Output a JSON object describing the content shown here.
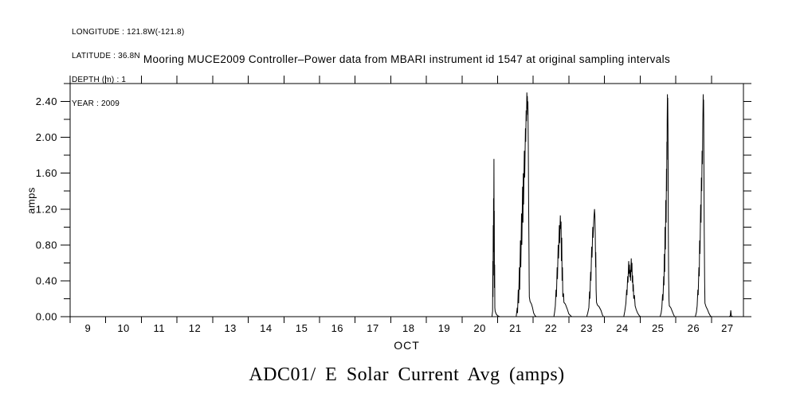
{
  "header": {
    "metadata_lines": [
      "LONGITUDE : 121.8W(-121.8)",
      "LATITUDE : 36.8N",
      "DEPTH (m) : 1",
      "YEAR : 2009"
    ],
    "title": "Mooring MUCE2009 Controller–Power data from MBARI instrument id 1547 at original sampling intervals"
  },
  "footer": {
    "title": "ADC01/ E Solar Current Avg (amps)"
  },
  "colors": {
    "background": "#ffffff",
    "foreground": "#000000"
  },
  "chart_data": {
    "type": "line",
    "title": "Mooring MUCE2009 Controller–Power data from MBARI instrument id 1547 at original sampling intervals",
    "subtitle": "ADC01/ E Solar Current Avg (amps)",
    "xlabel": "OCT",
    "ylabel": "amps",
    "xlim": [
      9,
      27.9
    ],
    "ylim": [
      0,
      2.6
    ],
    "grid": false,
    "legend": "none",
    "x_ticks": [
      9,
      10,
      11,
      12,
      13,
      14,
      15,
      16,
      17,
      18,
      19,
      20,
      21,
      22,
      23,
      24,
      25,
      26,
      27
    ],
    "x_tick_labels": [
      "9",
      "10",
      "11",
      "12",
      "13",
      "14",
      "15",
      "16",
      "17",
      "18",
      "19",
      "20",
      "21",
      "22",
      "23",
      "24",
      "25",
      "26",
      "27"
    ],
    "y_ticks": [
      0.0,
      0.4,
      0.8,
      1.2,
      1.6,
      2.0,
      2.4
    ],
    "y_tick_labels": [
      "0.00",
      "0.40",
      "0.80",
      "1.20",
      "1.60",
      "2.00",
      "2.40"
    ],
    "y_minor_step": 0.2,
    "series": [
      {
        "name": "solar_current_avg_amps",
        "color": "#000000",
        "points": [
          [
            20.5,
            0
          ],
          [
            20.84,
            0
          ],
          [
            20.85,
            0.03
          ],
          [
            20.86,
            0.06
          ],
          [
            20.865,
            0.62
          ],
          [
            20.87,
            0.22
          ],
          [
            20.876,
            1.02
          ],
          [
            20.881,
            0.46
          ],
          [
            20.886,
            1.32
          ],
          [
            20.891,
            0.72
          ],
          [
            20.896,
            1.76
          ],
          [
            20.901,
            0.92
          ],
          [
            20.906,
            1.18
          ],
          [
            20.911,
            0.32
          ],
          [
            20.916,
            0.58
          ],
          [
            20.921,
            0.1
          ],
          [
            20.93,
            0.06
          ],
          [
            20.96,
            0.03
          ],
          [
            21.0,
            0.01
          ],
          [
            21.06,
            0
          ],
          [
            21.52,
            0
          ],
          [
            21.55,
            0.1
          ],
          [
            21.56,
            0.04
          ],
          [
            21.58,
            0.3
          ],
          [
            21.59,
            0.15
          ],
          [
            21.61,
            0.55
          ],
          [
            21.62,
            0.3
          ],
          [
            21.64,
            0.85
          ],
          [
            21.65,
            0.55
          ],
          [
            21.67,
            1.15
          ],
          [
            21.68,
            0.8
          ],
          [
            21.7,
            1.45
          ],
          [
            21.71,
            1.05
          ],
          [
            21.72,
            1.6
          ],
          [
            21.73,
            1.25
          ],
          [
            21.75,
            1.85
          ],
          [
            21.76,
            1.55
          ],
          [
            21.78,
            2.1
          ],
          [
            21.79,
            1.95
          ],
          [
            21.8,
            2.3
          ],
          [
            21.81,
            2.18
          ],
          [
            21.82,
            2.5
          ],
          [
            21.83,
            2.32
          ],
          [
            21.835,
            2.46
          ],
          [
            21.845,
            2.25
          ],
          [
            21.85,
            2.4
          ],
          [
            21.86,
            1.9
          ],
          [
            21.87,
            1.3
          ],
          [
            21.88,
            0.7
          ],
          [
            21.885,
            0.4
          ],
          [
            21.89,
            0.22
          ],
          [
            21.91,
            0.17
          ],
          [
            21.95,
            0.14
          ],
          [
            21.98,
            0.1
          ],
          [
            22.01,
            0.04
          ],
          [
            22.05,
            0.01
          ],
          [
            22.09,
            0
          ],
          [
            22.58,
            0
          ],
          [
            22.6,
            0.05
          ],
          [
            22.62,
            0.12
          ],
          [
            22.64,
            0.3
          ],
          [
            22.65,
            0.22
          ],
          [
            22.67,
            0.55
          ],
          [
            22.68,
            0.42
          ],
          [
            22.7,
            0.8
          ],
          [
            22.71,
            0.65
          ],
          [
            22.73,
            1.02
          ],
          [
            22.74,
            0.82
          ],
          [
            22.76,
            1.13
          ],
          [
            22.77,
            0.98
          ],
          [
            22.78,
            1.06
          ],
          [
            22.79,
            0.62
          ],
          [
            22.8,
            0.88
          ],
          [
            22.81,
            0.4
          ],
          [
            22.82,
            0.55
          ],
          [
            22.83,
            0.22
          ],
          [
            22.85,
            0.26
          ],
          [
            22.86,
            0.16
          ],
          [
            22.9,
            0.14
          ],
          [
            22.95,
            0.09
          ],
          [
            23.0,
            0.03
          ],
          [
            23.05,
            0.01
          ],
          [
            23.08,
            0
          ],
          [
            23.5,
            0
          ],
          [
            23.53,
            0.04
          ],
          [
            23.56,
            0.1
          ],
          [
            23.58,
            0.28
          ],
          [
            23.59,
            0.2
          ],
          [
            23.61,
            0.5
          ],
          [
            23.62,
            0.4
          ],
          [
            23.64,
            0.78
          ],
          [
            23.65,
            0.66
          ],
          [
            23.67,
            1.0
          ],
          [
            23.68,
            0.88
          ],
          [
            23.7,
            1.08
          ],
          [
            23.72,
            1.2
          ],
          [
            23.73,
            1.12
          ],
          [
            23.74,
            0.92
          ],
          [
            23.75,
            0.55
          ],
          [
            23.755,
            0.72
          ],
          [
            23.765,
            0.3
          ],
          [
            23.775,
            0.16
          ],
          [
            23.8,
            0.13
          ],
          [
            23.85,
            0.11
          ],
          [
            23.9,
            0.07
          ],
          [
            23.94,
            0.02
          ],
          [
            23.97,
            0
          ],
          [
            24.54,
            0
          ],
          [
            24.57,
            0.06
          ],
          [
            24.6,
            0.15
          ],
          [
            24.62,
            0.3
          ],
          [
            24.63,
            0.24
          ],
          [
            24.65,
            0.45
          ],
          [
            24.66,
            0.38
          ],
          [
            24.68,
            0.62
          ],
          [
            24.69,
            0.48
          ],
          [
            24.7,
            0.58
          ],
          [
            24.71,
            0.44
          ],
          [
            24.72,
            0.52
          ],
          [
            24.73,
            0.4
          ],
          [
            24.75,
            0.65
          ],
          [
            24.76,
            0.5
          ],
          [
            24.77,
            0.6
          ],
          [
            24.78,
            0.38
          ],
          [
            24.79,
            0.46
          ],
          [
            24.8,
            0.28
          ],
          [
            24.81,
            0.36
          ],
          [
            24.82,
            0.2
          ],
          [
            24.84,
            0.24
          ],
          [
            24.86,
            0.12
          ],
          [
            24.89,
            0.08
          ],
          [
            24.93,
            0.04
          ],
          [
            24.98,
            0.01
          ],
          [
            25.02,
            0
          ],
          [
            25.56,
            0
          ],
          [
            25.59,
            0.04
          ],
          [
            25.61,
            0.1
          ],
          [
            25.63,
            0.25
          ],
          [
            25.64,
            0.18
          ],
          [
            25.66,
            0.45
          ],
          [
            25.67,
            0.35
          ],
          [
            25.68,
            0.7
          ],
          [
            25.69,
            0.5
          ],
          [
            25.7,
            1.0
          ],
          [
            25.71,
            0.75
          ],
          [
            25.72,
            1.3
          ],
          [
            25.73,
            1.05
          ],
          [
            25.74,
            1.65
          ],
          [
            25.745,
            1.4
          ],
          [
            25.75,
            1.95
          ],
          [
            25.755,
            1.75
          ],
          [
            25.76,
            2.2
          ],
          [
            25.766,
            2.48
          ],
          [
            25.771,
            2.3
          ],
          [
            25.776,
            2.44
          ],
          [
            25.781,
            2.1
          ],
          [
            25.786,
            1.6
          ],
          [
            25.79,
            1.0
          ],
          [
            25.8,
            0.45
          ],
          [
            25.81,
            0.18
          ],
          [
            25.82,
            0.12
          ],
          [
            25.86,
            0.1
          ],
          [
            25.9,
            0.06
          ],
          [
            25.94,
            0.02
          ],
          [
            25.97,
            0
          ],
          [
            26.55,
            0
          ],
          [
            26.58,
            0.05
          ],
          [
            26.6,
            0.12
          ],
          [
            26.62,
            0.3
          ],
          [
            26.63,
            0.24
          ],
          [
            26.65,
            0.55
          ],
          [
            26.66,
            0.45
          ],
          [
            26.67,
            0.85
          ],
          [
            26.68,
            0.7
          ],
          [
            26.7,
            1.25
          ],
          [
            26.71,
            1.05
          ],
          [
            26.72,
            1.55
          ],
          [
            26.73,
            1.4
          ],
          [
            26.74,
            1.85
          ],
          [
            26.75,
            1.7
          ],
          [
            26.76,
            2.15
          ],
          [
            26.77,
            2.48
          ],
          [
            26.775,
            2.3
          ],
          [
            26.781,
            2.42
          ],
          [
            26.786,
            2.2
          ],
          [
            26.791,
            1.7
          ],
          [
            26.8,
            0.95
          ],
          [
            26.81,
            0.4
          ],
          [
            26.82,
            0.15
          ],
          [
            26.85,
            0.11
          ],
          [
            26.89,
            0.08
          ],
          [
            26.93,
            0.04
          ],
          [
            26.97,
            0.01
          ],
          [
            27.0,
            0
          ],
          [
            27.5,
            0
          ],
          [
            27.53,
            0.01
          ],
          [
            27.545,
            0.07
          ],
          [
            27.56,
            0.01
          ],
          [
            27.6,
            0
          ],
          [
            27.66,
            0
          ]
        ]
      }
    ]
  }
}
